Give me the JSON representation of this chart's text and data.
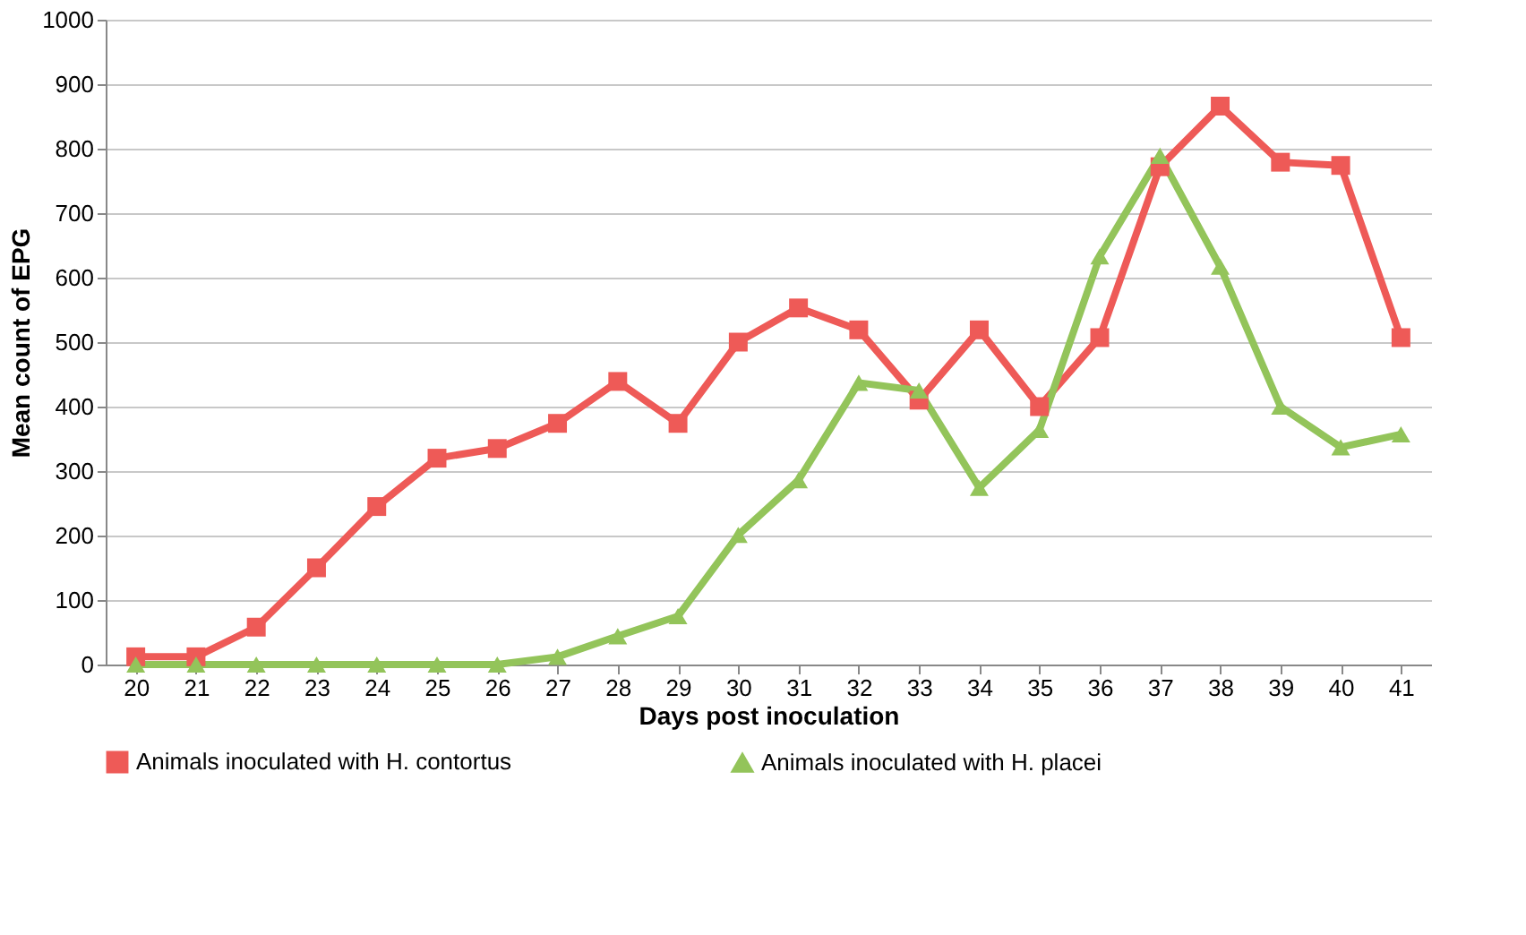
{
  "chart_data": {
    "type": "line",
    "xlabel": "Days post inoculation",
    "ylabel": "Mean count of EPG",
    "categories": [
      "20",
      "21",
      "22",
      "23",
      "24",
      "25",
      "26",
      "27",
      "28",
      "29",
      "30",
      "31",
      "32",
      "33",
      "34",
      "35",
      "36",
      "37",
      "38",
      "39",
      "40",
      "41"
    ],
    "series": [
      {
        "name": "Animals inoculated with H. contortus",
        "color": "#ee5a57",
        "marker": "square",
        "values": [
          12,
          12,
          58,
          150,
          245,
          320,
          335,
          374,
          439,
          374,
          500,
          553,
          519,
          410,
          519,
          400,
          507,
          772,
          866,
          779,
          774,
          507
        ]
      },
      {
        "name": "Animals inoculated with H. placei",
        "color": "#93c45a",
        "marker": "triangle",
        "values": [
          0,
          0,
          0,
          0,
          0,
          0,
          0,
          12,
          44,
          75,
          201,
          286,
          437,
          425,
          274,
          364,
          633,
          789,
          617,
          400,
          337,
          357
        ]
      }
    ],
    "ylim": [
      0,
      1000
    ],
    "yticks": [
      0,
      100,
      200,
      300,
      400,
      500,
      600,
      700,
      800,
      900,
      1000
    ],
    "grid": "y",
    "legend": "bottom",
    "line_style": "solid"
  }
}
